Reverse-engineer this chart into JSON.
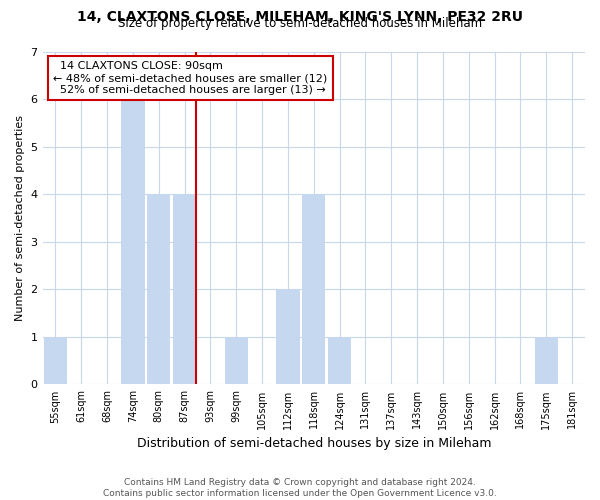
{
  "title": "14, CLAXTONS CLOSE, MILEHAM, KING'S LYNN, PE32 2RU",
  "subtitle": "Size of property relative to semi-detached houses in Mileham",
  "xlabel": "Distribution of semi-detached houses by size in Mileham",
  "ylabel": "Number of semi-detached properties",
  "footer_line1": "Contains HM Land Registry data © Crown copyright and database right 2024.",
  "footer_line2": "Contains public sector information licensed under the Open Government Licence v3.0.",
  "bin_labels": [
    "55sqm",
    "61sqm",
    "68sqm",
    "74sqm",
    "80sqm",
    "87sqm",
    "93sqm",
    "99sqm",
    "105sqm",
    "112sqm",
    "118sqm",
    "124sqm",
    "131sqm",
    "137sqm",
    "143sqm",
    "150sqm",
    "156sqm",
    "162sqm",
    "168sqm",
    "175sqm",
    "181sqm"
  ],
  "bar_heights": [
    1,
    0,
    0,
    6,
    4,
    4,
    0,
    1,
    0,
    2,
    4,
    1,
    0,
    0,
    0,
    0,
    0,
    0,
    0,
    1,
    0
  ],
  "subject_bin_index": 5,
  "subject_label": "14 CLAXTONS CLOSE: 90sqm",
  "pct_smaller": 48,
  "pct_larger": 52,
  "n_smaller": 12,
  "n_larger": 13,
  "bar_color_normal": "#c5d8f0",
  "subject_line_color": "#cc0000",
  "annotation_box_color": "#ffffff",
  "annotation_box_edge": "#cc0000",
  "ylim": [
    0,
    7
  ],
  "background_color": "#ffffff",
  "grid_color": "#c8d8e8"
}
